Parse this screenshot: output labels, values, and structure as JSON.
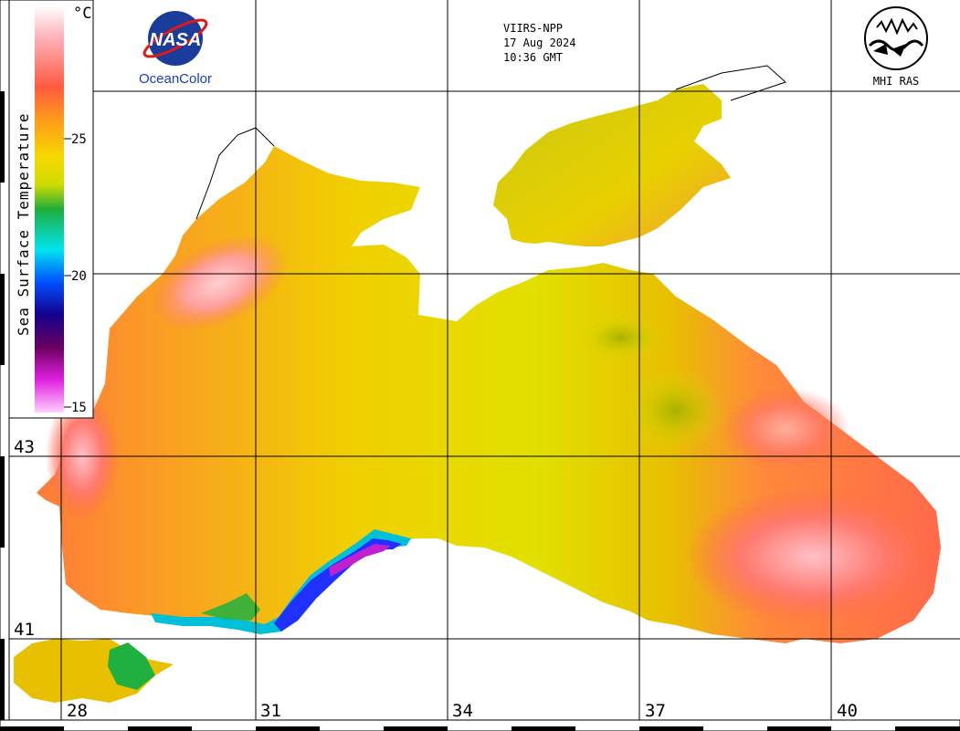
{
  "header": {
    "satellite": "VIIRS-NPP",
    "date": "17 Aug 2024",
    "time": "10:36 GMT"
  },
  "logos": {
    "left_emblem_text": "NASA",
    "left_caption": "OceanColor",
    "right_caption": "MHI RAS"
  },
  "colorbar": {
    "title": "Sea Surface Temperature",
    "unit": "°C",
    "ticks": [
      "25",
      "20",
      "15"
    ],
    "colors_top_to_bottom": [
      "#ffffff",
      "#ff9aa0",
      "#ff5a40",
      "#ff9a1a",
      "#f6d800",
      "#d8e000",
      "#1fae3a",
      "#00e4f0",
      "#0050ff",
      "#14008c",
      "#6a0060",
      "#e020e0",
      "#ffd0ff"
    ]
  },
  "axes": {
    "longitude_labels": [
      "28",
      "31",
      "34",
      "37",
      "40"
    ],
    "latitude_labels": [
      "43",
      "41"
    ]
  },
  "colors": {
    "warm_sea": "#f9a020",
    "hot_sea": "#ff6a3a",
    "cool_sea": "#e9e200",
    "coastal_cold": "#00c8e0",
    "land": "#ffffff",
    "grid": "#000000"
  }
}
